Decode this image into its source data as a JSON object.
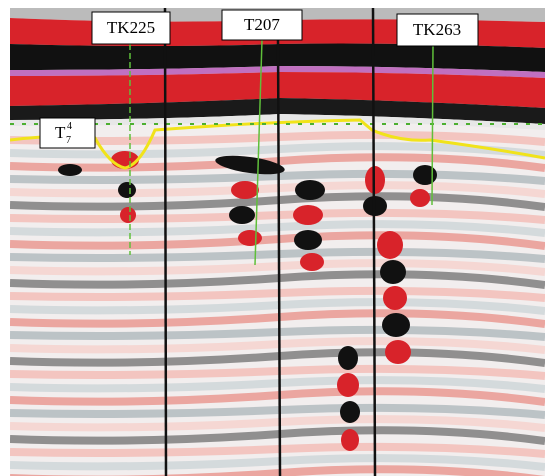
{
  "wells": [
    {
      "label": "TK225"
    },
    {
      "label": "T207"
    },
    {
      "label": "TK263"
    }
  ],
  "horizon": {
    "label": "T",
    "subscript": "7",
    "superscript": "4"
  }
}
